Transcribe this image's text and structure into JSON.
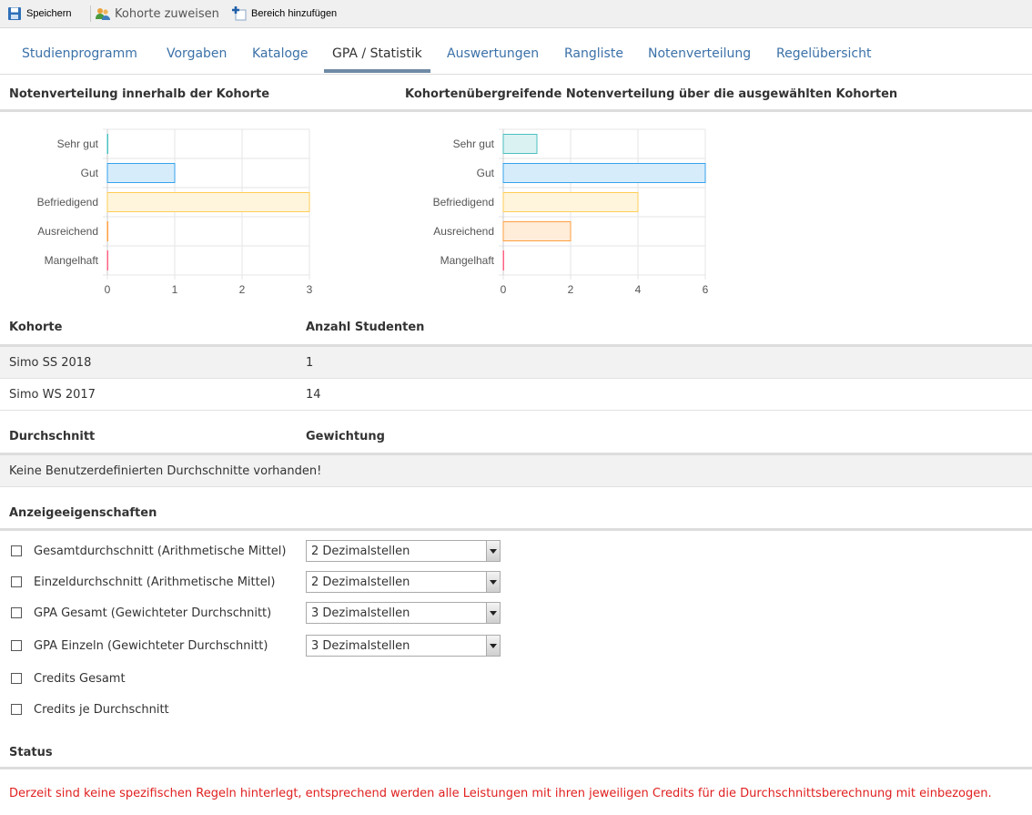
{
  "toolbar": {
    "save_label": "Speichern",
    "assign_label": "Kohorte zuweisen",
    "add_label": "Bereich hinzufügen"
  },
  "tabs": [
    {
      "label": "Studienprogramm"
    },
    {
      "label": "Vorgaben"
    },
    {
      "label": "Kataloge"
    },
    {
      "label": "GPA / Statistik"
    },
    {
      "label": "Auswertungen"
    },
    {
      "label": "Rangliste"
    },
    {
      "label": "Notenverteilung"
    },
    {
      "label": "Regelübersicht"
    }
  ],
  "active_tab": "GPA / Statistik",
  "chart_left": {
    "title": "Notenverteilung innerhalb der Kohorte"
  },
  "chart_right": {
    "title": "Kohortenübergreifende Notenverteilung über die ausgewählten Kohorten"
  },
  "chart_data": [
    {
      "type": "bar",
      "orientation": "horizontal",
      "title": "Notenverteilung innerhalb der Kohorte",
      "categories": [
        "Sehr gut",
        "Gut",
        "Befriedigend",
        "Ausreichend",
        "Mangelhaft"
      ],
      "values": [
        0,
        1,
        3,
        0,
        0
      ],
      "xlim": [
        0,
        3
      ],
      "xticks": [
        "0",
        "1",
        "2",
        "3"
      ],
      "grid": true,
      "colors": [
        "#4bc0c0",
        "#36a2eb",
        "#ffcd56",
        "#ff9f40",
        "#ff6384"
      ],
      "fills": [
        "#dbf2f2",
        "#d7ecfb",
        "#fff5dd",
        "#ffecd9",
        "#ffe0e6"
      ]
    },
    {
      "type": "bar",
      "orientation": "horizontal",
      "title": "Kohortenübergreifende Notenverteilung über die ausgewählten Kohorten",
      "categories": [
        "Sehr gut",
        "Gut",
        "Befriedigend",
        "Ausreichend",
        "Mangelhaft"
      ],
      "values": [
        1,
        6,
        4,
        2,
        0
      ],
      "xlim": [
        0,
        6
      ],
      "xticks": [
        "0",
        "2",
        "4",
        "6"
      ],
      "grid": true,
      "colors": [
        "#4bc0c0",
        "#36a2eb",
        "#ffcd56",
        "#ff9f40",
        "#ff6384"
      ],
      "fills": [
        "#dbf2f2",
        "#d7ecfb",
        "#fff5dd",
        "#ffecd9",
        "#ffe0e6"
      ]
    }
  ],
  "cohort_table": {
    "headers": [
      "Kohorte",
      "Anzahl Studenten"
    ],
    "rows": [
      {
        "cohort": "Simo SS 2018",
        "count": "1"
      },
      {
        "cohort": "Simo WS 2017",
        "count": "14"
      }
    ]
  },
  "average_table": {
    "headers": [
      "Durchschnitt",
      "Gewichtung"
    ],
    "empty_message": "Keine Benutzerdefinierten Durchschnitte vorhanden!"
  },
  "display_props": {
    "title": "Anzeigeeigenschaften",
    "options": [
      {
        "label": "Gesamtdurchschnitt (Arithmetische Mittel)",
        "checked": false,
        "select": "2 Dezimalstellen"
      },
      {
        "label": "Einzeldurchschnitt (Arithmetische Mittel)",
        "checked": false,
        "select": "2 Dezimalstellen"
      },
      {
        "label": "GPA Gesamt (Gewichteter Durchschnitt)",
        "checked": false,
        "select": "3 Dezimalstellen"
      },
      {
        "label": "GPA Einzeln (Gewichteter Durchschnitt)",
        "checked": false,
        "select": "3 Dezimalstellen"
      },
      {
        "label": "Credits Gesamt",
        "checked": false
      },
      {
        "label": "Credits je Durchschnitt",
        "checked": false
      }
    ]
  },
  "status": {
    "title": "Status",
    "message": "Derzeit sind keine spezifischen Regeln hinterlegt, entsprechend werden alle Leistungen mit ihren jeweiligen Credits für die Durchschnittsberechnung mit einbezogen.",
    "message_color": "#e02020"
  },
  "colors": {
    "tab_link": "#3b71a8",
    "tab_underline": "#6e8aa5"
  }
}
